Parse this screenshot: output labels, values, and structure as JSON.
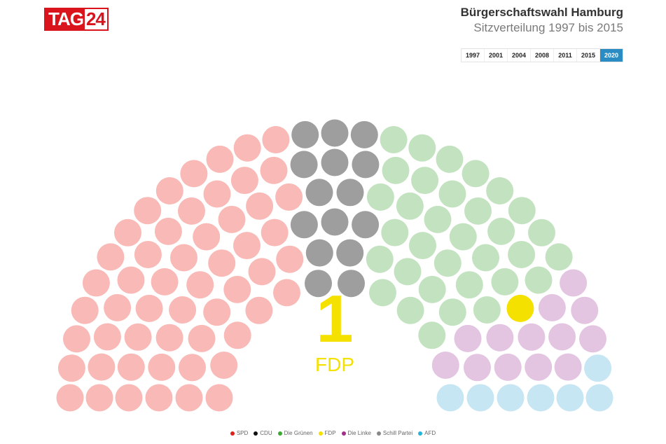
{
  "logo": {
    "text_a": "TAG",
    "text_b": "24"
  },
  "header": {
    "title": "Bürgerschaftswahl Hamburg",
    "subtitle": "Sitzverteilung 1997 bis 2015"
  },
  "year_tabs": [
    "1997",
    "2001",
    "2004",
    "2008",
    "2011",
    "2015",
    "2020"
  ],
  "active_year": "2020",
  "highlight": {
    "value": "1",
    "label": "FDP",
    "color": "#f5e100"
  },
  "legend": [
    {
      "label": "SPD",
      "color": "#d9231c"
    },
    {
      "label": "CDU",
      "color": "#111111"
    },
    {
      "label": "Die Grünen",
      "color": "#3aa832"
    },
    {
      "label": "FDP",
      "color": "#f5e100"
    },
    {
      "label": "Die Linke",
      "color": "#a0308a"
    },
    {
      "label": "Schill Partei",
      "color": "#888888"
    },
    {
      "label": "AFD",
      "color": "#25b3d9"
    }
  ],
  "chart_data": {
    "type": "parliament",
    "title": "Bürgerschaftswahl Hamburg",
    "subtitle": "Sitzverteilung 1997 bis 2015",
    "year": "2020",
    "total_seats": 123,
    "series": [
      {
        "name": "SPD",
        "seats": 54,
        "color": "#f9b9b6"
      },
      {
        "name": "CDU",
        "seats": 15,
        "color": "#9e9e9e"
      },
      {
        "name": "Die Grünen",
        "seats": 33,
        "color": "#c3e3c0"
      },
      {
        "name": "FDP",
        "seats": 1,
        "color": "#f5e100"
      },
      {
        "name": "Die Linke",
        "seats": 13,
        "color": "#e3c4e1"
      },
      {
        "name": "AFD",
        "seats": 7,
        "color": "#c7e6f3"
      }
    ],
    "highlighted_party": "FDP"
  }
}
